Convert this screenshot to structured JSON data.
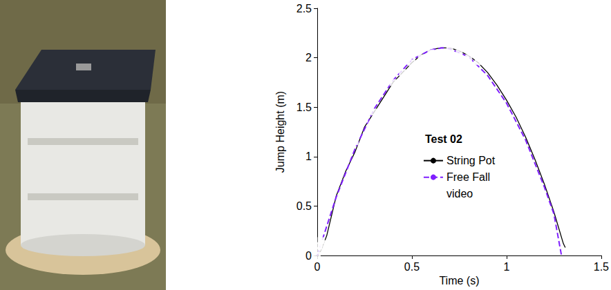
{
  "chart_data": {
    "type": "line",
    "x_label": "Time (s)",
    "y_label": "Jump Height (m)",
    "legend_title": "Test 02",
    "legend": "center",
    "grid": false,
    "xlim": [
      0,
      1.5
    ],
    "xticks": [
      0,
      0.5,
      1,
      1.5
    ],
    "ylim": [
      0,
      2.5
    ],
    "yticks": [
      0,
      0.5,
      1,
      1.5,
      2,
      2.5
    ],
    "series": [
      {
        "name": "String Pot",
        "type": "line",
        "color": "#000000",
        "line_style": "solid",
        "x": [
          0,
          0.02,
          0.05,
          0.1,
          0.15,
          0.2,
          0.25,
          0.3,
          0.35,
          0.4,
          0.45,
          0.5,
          0.55,
          0.6,
          0.65,
          0.7,
          0.75,
          0.8,
          0.85,
          0.9,
          0.95,
          1.0,
          1.05,
          1.1,
          1.15,
          1.2,
          1.25,
          1.3,
          1.31
        ],
        "values": [
          0,
          0.05,
          0.2,
          0.6,
          0.85,
          1.05,
          1.3,
          1.45,
          1.6,
          1.75,
          1.85,
          1.95,
          2.03,
          2.08,
          2.1,
          2.1,
          2.07,
          2.02,
          1.95,
          1.85,
          1.72,
          1.57,
          1.4,
          1.2,
          0.97,
          0.72,
          0.44,
          0.12,
          0.08
        ]
      },
      {
        "name": "Free Fall",
        "type": "line",
        "color": "#7f1fff",
        "line_style": "dashed",
        "x": [
          0,
          0.1,
          0.2,
          0.3,
          0.4,
          0.5,
          0.6,
          0.66,
          0.7,
          0.8,
          0.9,
          1.0,
          1.1,
          1.2,
          1.25,
          1.29
        ],
        "values": [
          0,
          0.59,
          1.08,
          1.48,
          1.77,
          1.98,
          2.08,
          2.1,
          2.09,
          2.01,
          1.82,
          1.54,
          1.17,
          0.69,
          0.42,
          0.0
        ]
      },
      {
        "name": "video",
        "type": "scatter",
        "color": "#e0706a",
        "marker": "square",
        "x": [
          0,
          0.01,
          0.01,
          0.02,
          0.03,
          0.1,
          0.15,
          0.2,
          0.25,
          0.3,
          0.4,
          0.45,
          0.5,
          0.55,
          0.6,
          0.7,
          0.75,
          0.8,
          0.85
        ],
        "values": [
          0,
          0.05,
          0.1,
          0.15,
          0.12,
          0.85,
          0.97,
          1.15,
          1.38,
          1.45,
          1.75,
          1.85,
          1.95,
          2.0,
          2.05,
          2.08,
          2.05,
          2.0,
          1.96
        ]
      }
    ]
  }
}
